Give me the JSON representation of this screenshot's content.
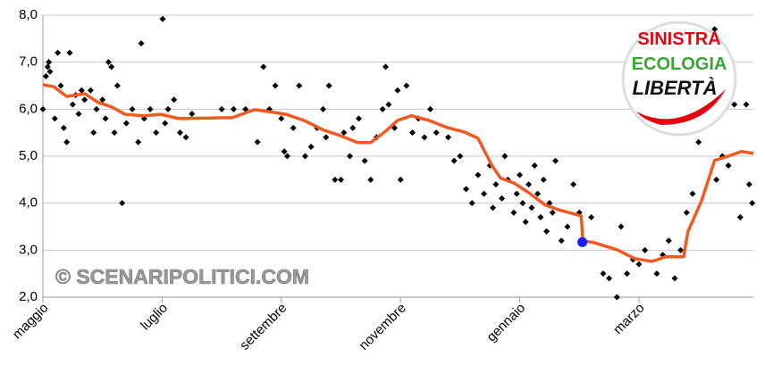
{
  "chart_data": {
    "type": "scatter",
    "xlim": [
      0,
      11.92
    ],
    "xticks": [
      {
        "value": 0,
        "label": "maggio"
      },
      {
        "value": 2,
        "label": "luglio"
      },
      {
        "value": 4,
        "label": "settembre"
      },
      {
        "value": 6,
        "label": "novembre"
      },
      {
        "value": 8,
        "label": "gennaio"
      },
      {
        "value": 10,
        "label": "marzo"
      }
    ],
    "ylim": [
      2,
      8
    ],
    "yticks": [
      {
        "value": 2,
        "label": "2,0"
      },
      {
        "value": 3,
        "label": "3,0"
      },
      {
        "value": 4,
        "label": "4,0"
      },
      {
        "value": 5,
        "label": "5,0"
      },
      {
        "value": 6,
        "label": "6,0"
      },
      {
        "value": 7,
        "label": "7,0"
      },
      {
        "value": 8,
        "label": "8,0"
      }
    ],
    "grid": true,
    "points": {
      "color": "#000000",
      "x": [
        0,
        0.05,
        0.08,
        0.1,
        0.12,
        0.2,
        0.25,
        0.3,
        0.35,
        0.4,
        0.45,
        0.5,
        0.55,
        0.6,
        0.65,
        0.7,
        0.8,
        0.85,
        0.9,
        1.0,
        1.05,
        1.1,
        1.15,
        1.2,
        1.25,
        1.33,
        1.4,
        1.5,
        1.6,
        1.65,
        1.7,
        1.8,
        1.9,
        2.01,
        2.05,
        2.1,
        2.2,
        2.3,
        2.4,
        2.5,
        3.0,
        3.2,
        3.4,
        3.6,
        3.7,
        3.8,
        3.9,
        4.0,
        4.05,
        4.1,
        4.2,
        4.3,
        4.4,
        4.5,
        4.6,
        4.7,
        4.75,
        4.8,
        4.9,
        5.0,
        5.05,
        5.15,
        5.2,
        5.3,
        5.4,
        5.5,
        5.6,
        5.7,
        5.75,
        5.8,
        5.9,
        5.95,
        6.0,
        6.1,
        6.2,
        6.3,
        6.4,
        6.5,
        6.6,
        6.8,
        6.9,
        7.0,
        7.1,
        7.2,
        7.3,
        7.4,
        7.5,
        7.55,
        7.6,
        7.7,
        7.75,
        7.8,
        7.9,
        7.95,
        8.0,
        8.05,
        8.1,
        8.15,
        8.2,
        8.25,
        8.3,
        8.35,
        8.4,
        8.45,
        8.5,
        8.55,
        8.6,
        8.7,
        8.8,
        8.9,
        9.0,
        9.2,
        9.4,
        9.5,
        9.63,
        9.7,
        9.8,
        9.9,
        10.0,
        10.1,
        10.3,
        10.4,
        10.5,
        10.6,
        10.7,
        10.8,
        10.9,
        11.0,
        11.1,
        11.2,
        11.27,
        11.3,
        11.4,
        11.5,
        11.6,
        11.7,
        11.8,
        11.85,
        11.9
      ],
      "y": [
        6.0,
        6.7,
        6.9,
        7.0,
        6.8,
        5.8,
        7.2,
        6.5,
        5.6,
        5.3,
        7.2,
        6.1,
        6.3,
        5.9,
        6.4,
        6.2,
        6.4,
        5.5,
        6.0,
        6.2,
        5.8,
        7.0,
        6.9,
        5.5,
        6.5,
        4.0,
        5.7,
        6.0,
        5.3,
        7.4,
        5.8,
        6.0,
        5.5,
        7.92,
        5.7,
        6.0,
        6.2,
        5.5,
        5.4,
        5.9,
        6.0,
        6.0,
        6.0,
        5.3,
        6.9,
        6.0,
        6.5,
        5.8,
        5.1,
        5.0,
        5.6,
        6.5,
        5.0,
        5.2,
        5.6,
        6.0,
        5.4,
        6.5,
        4.5,
        4.5,
        5.5,
        5.0,
        5.6,
        5.8,
        4.9,
        4.5,
        5.4,
        6.0,
        6.9,
        6.1,
        5.6,
        6.4,
        4.5,
        6.5,
        5.5,
        5.8,
        5.4,
        6.0,
        5.5,
        5.4,
        4.9,
        5.0,
        4.3,
        4.0,
        4.6,
        4.2,
        4.8,
        3.9,
        4.4,
        4.1,
        5.0,
        4.5,
        3.8,
        4.2,
        4.6,
        4.0,
        3.6,
        4.4,
        3.9,
        4.8,
        4.2,
        3.7,
        4.5,
        3.4,
        4.0,
        3.8,
        4.9,
        3.2,
        3.5,
        4.4,
        3.8,
        3.7,
        2.5,
        2.4,
        2.0,
        3.5,
        2.5,
        2.8,
        2.7,
        3.0,
        2.5,
        2.9,
        3.2,
        2.4,
        3.0,
        3.8,
        4.2,
        5.3,
        5.8,
        6.3,
        7.7,
        4.5,
        5.0,
        4.8,
        6.1,
        3.7,
        6.1,
        4.4,
        4.0
      ]
    },
    "trend": {
      "color": "#f15a22",
      "x": [
        0,
        0.18,
        0.4,
        0.7,
        0.93,
        1.15,
        1.38,
        1.68,
        1.98,
        2.28,
        3.18,
        3.55,
        3.78,
        4.08,
        4.38,
        4.68,
        4.98,
        5.28,
        5.5,
        5.73,
        5.95,
        6.18,
        6.48,
        6.78,
        7.08,
        7.3,
        7.53,
        7.68,
        7.9,
        8.13,
        8.43,
        8.65,
        9.03,
        9.06,
        9.25,
        9.63,
        9.93,
        10.22,
        10.45,
        10.75,
        10.82,
        11.05,
        11.27,
        11.5,
        11.72,
        11.92
      ],
      "y": [
        6.52,
        6.48,
        6.27,
        6.33,
        6.14,
        6.05,
        5.89,
        5.86,
        5.89,
        5.8,
        5.82,
        5.99,
        5.95,
        5.89,
        5.76,
        5.57,
        5.44,
        5.29,
        5.29,
        5.51,
        5.76,
        5.86,
        5.76,
        5.61,
        5.51,
        5.38,
        4.81,
        4.53,
        4.43,
        4.24,
        3.96,
        3.86,
        3.73,
        3.2,
        3.16,
        3.01,
        2.82,
        2.76,
        2.86,
        2.86,
        3.39,
        4.05,
        4.91,
        5.0,
        5.1,
        5.06
      ]
    },
    "highlight": {
      "x": 9.05,
      "y": 3.17,
      "color": "#1a1aff"
    },
    "watermark": "© SCENARIPOLITICI.COM",
    "logo": [
      "SINISTRA",
      "ECOLOGIA",
      "LIBERTÀ"
    ]
  }
}
